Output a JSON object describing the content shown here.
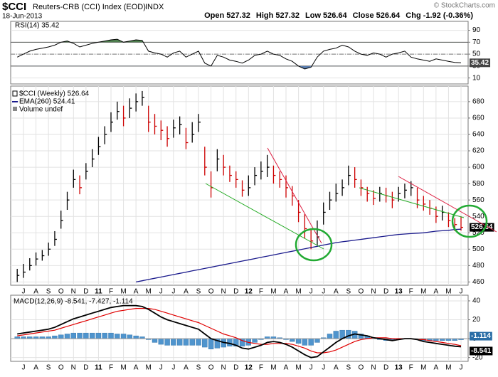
{
  "header": {
    "symbol": "$CCI",
    "name": "Reuters-CRB (CCI) Index (EOD)",
    "exchange": "INDX",
    "date": "18-Jun-2013",
    "copyright": "© StockCharts.com",
    "quote": [
      {
        "label": "Open",
        "value": "527.32"
      },
      {
        "label": "High",
        "value": "527.32"
      },
      {
        "label": "Low",
        "value": "526.64"
      },
      {
        "label": "Close",
        "value": "526.64"
      },
      {
        "label": "Chg",
        "value": "-1.92 (-0.36%)"
      }
    ]
  },
  "chart_data": [
    {
      "type": "rsi",
      "title": "RSI(14) 35.42",
      "ylim": [
        0,
        105
      ],
      "yticks": [
        10,
        30,
        50,
        70,
        90
      ],
      "shade_above": 70,
      "shade_below": 30,
      "color": "#000000",
      "shade_color": "#4f7f4f",
      "grid": true,
      "values": [
        45,
        50,
        55,
        58,
        60,
        62,
        65,
        70,
        72,
        68,
        62,
        65,
        68,
        70,
        72,
        74,
        75,
        70,
        72,
        74,
        73,
        55,
        52,
        50,
        45,
        52,
        55,
        45,
        50,
        55,
        35,
        30,
        48,
        45,
        40,
        38,
        35,
        40,
        48,
        50,
        55,
        50,
        48,
        42,
        38,
        30,
        25,
        28,
        45,
        55,
        58,
        60,
        65,
        62,
        55,
        50,
        48,
        52,
        50,
        45,
        50,
        52,
        55,
        45,
        42,
        40,
        38,
        42,
        40,
        38,
        36,
        35.42
      ]
    },
    {
      "type": "ohlc",
      "ylim": [
        456,
        699
      ],
      "yticks": [
        460,
        480,
        500,
        520,
        540,
        560,
        580,
        600,
        620,
        640,
        660,
        680
      ],
      "grid": true,
      "categories": [
        null,
        "J",
        null,
        "A",
        null,
        "S",
        null,
        "O",
        null,
        "N",
        null,
        "D",
        null,
        "11",
        null,
        "F",
        null,
        "M",
        null,
        "A",
        null,
        "M",
        null,
        "J",
        null,
        "J",
        null,
        "A",
        null,
        "S",
        null,
        "O",
        null,
        "N",
        null,
        "D",
        null,
        "12",
        null,
        "F",
        null,
        "M",
        null,
        "A",
        null,
        "M",
        null,
        "J",
        null,
        "J",
        null,
        "A",
        null,
        "S",
        null,
        "O",
        null,
        "N",
        null,
        "D",
        null,
        "13",
        null,
        "F",
        null,
        "M",
        null,
        "A",
        null,
        "M",
        null,
        "J"
      ],
      "note": "Volume undef",
      "series": [
        {
          "name": "$CCI (Weekly) 526.64",
          "up_color": "#000000",
          "down_color": "#cc0000",
          "high": [
            476,
            482,
            489,
            496,
            499,
            508,
            522,
            547,
            570,
            597,
            590,
            605,
            622,
            637,
            650,
            667,
            680,
            675,
            684,
            690,
            693,
            675,
            665,
            657,
            650,
            658,
            662,
            648,
            655,
            665,
            625,
            595,
            622,
            615,
            602,
            595,
            584,
            590,
            600,
            607,
            615,
            602,
            595,
            590,
            577,
            560,
            543,
            525,
            535,
            557,
            570,
            580,
            585,
            602,
            600,
            585,
            576,
            572,
            576,
            575,
            570,
            576,
            580,
            583,
            575,
            565,
            560,
            552,
            553,
            545,
            538,
            540
          ],
          "low": [
            460,
            465,
            474,
            480,
            486,
            492,
            504,
            525,
            548,
            575,
            567,
            585,
            600,
            615,
            628,
            643,
            658,
            650,
            660,
            668,
            675,
            643,
            640,
            633,
            625,
            636,
            640,
            622,
            630,
            643,
            590,
            563,
            595,
            590,
            582,
            575,
            564,
            565,
            578,
            585,
            588,
            580,
            575,
            563,
            553,
            533,
            513,
            500,
            505,
            530,
            548,
            558,
            565,
            578,
            575,
            565,
            558,
            554,
            558,
            557,
            550,
            558,
            562,
            565,
            550,
            547,
            542,
            532,
            535,
            527,
            522,
            522.64
          ],
          "close": [
            468,
            472,
            480,
            488,
            492,
            500,
            512,
            535,
            560,
            585,
            575,
            595,
            610,
            625,
            640,
            655,
            668,
            660,
            672,
            680,
            685,
            655,
            650,
            645,
            635,
            648,
            652,
            630,
            640,
            655,
            600,
            575,
            610,
            600,
            590,
            585,
            572,
            575,
            590,
            595,
            600,
            590,
            585,
            575,
            565,
            545,
            525,
            510,
            515,
            545,
            560,
            568,
            575,
            590,
            585,
            575,
            568,
            562,
            568,
            565,
            560,
            568,
            572,
            575,
            560,
            555,
            550,
            540,
            545,
            535,
            530,
            526.64
          ]
        },
        {
          "name": "EMA(260) 524.41",
          "color": "#1a1a8c",
          "values": [
            null,
            null,
            null,
            null,
            null,
            null,
            null,
            null,
            null,
            null,
            null,
            null,
            null,
            null,
            null,
            null,
            null,
            null,
            null,
            460,
            461.5,
            463,
            464.5,
            466,
            467.5,
            469,
            470.5,
            472,
            473.5,
            475,
            476.5,
            478,
            479.5,
            481,
            482.5,
            484,
            485.5,
            487,
            488.5,
            490,
            491.5,
            493,
            494.5,
            496,
            497.5,
            499,
            500.5,
            502,
            503.5,
            505,
            506.5,
            508,
            509,
            510,
            511,
            512,
            513,
            514,
            515,
            516,
            517,
            518,
            518.5,
            519,
            519.5,
            520,
            521,
            522,
            522.5,
            523,
            524,
            524.41
          ]
        }
      ]
    },
    {
      "type": "macd",
      "title": "MACD(12,26,9) -8.541, -7.427, -1.114",
      "ylim": [
        -24,
        46
      ],
      "yticks": [
        -20,
        0,
        20,
        40
      ],
      "grid": true,
      "categories": [
        null,
        "J",
        null,
        "A",
        null,
        "S",
        null,
        "O",
        null,
        "N",
        null,
        "D",
        null,
        "11",
        null,
        "F",
        null,
        "M",
        null,
        "A",
        null,
        "M",
        null,
        "J",
        null,
        "J",
        null,
        "A",
        null,
        "S",
        null,
        "O",
        null,
        "N",
        null,
        "D",
        null,
        "12",
        null,
        "F",
        null,
        "M",
        null,
        "A",
        null,
        "M",
        null,
        "J",
        null,
        "J",
        null,
        "A",
        null,
        "S",
        null,
        "O",
        null,
        "N",
        null,
        "D",
        null,
        "13",
        null,
        "F",
        null,
        "M",
        null,
        "A",
        null,
        "M",
        null,
        "J"
      ],
      "macd": {
        "color": "#000000",
        "values": [
          5,
          6,
          7,
          8,
          9,
          10,
          12,
          15,
          18,
          21,
          23,
          25,
          27,
          29,
          31,
          33,
          34,
          35,
          35,
          35,
          34,
          31,
          27,
          23,
          20,
          18,
          16,
          14,
          12,
          10,
          5,
          0,
          -2,
          -4,
          -5,
          -7,
          -10,
          -11,
          -9,
          -7,
          -4,
          -3,
          -4,
          -6,
          -9,
          -13,
          -17,
          -20,
          -19,
          -14,
          -9,
          -4,
          0,
          3,
          5,
          4,
          3,
          1,
          0,
          -1,
          -2,
          -1,
          0,
          0,
          -1,
          -3,
          -4,
          -5,
          -6,
          -7,
          -8,
          -8.541
        ]
      },
      "signal": {
        "color": "#e00000",
        "values": [
          3,
          4,
          5,
          6,
          7,
          8,
          9,
          11,
          13,
          15,
          17,
          19,
          21,
          23,
          25,
          27,
          29,
          30,
          31,
          32,
          32,
          32,
          31,
          29,
          27,
          25,
          23,
          21,
          19,
          17,
          14,
          11,
          8,
          5,
          3,
          1,
          -2,
          -4,
          -5,
          -6,
          -6,
          -5,
          -5,
          -5,
          -6,
          -8,
          -10,
          -13,
          -15,
          -15,
          -14,
          -12,
          -9,
          -6,
          -3,
          -1,
          0,
          1,
          1,
          1,
          0,
          0,
          0,
          0,
          -1,
          -1,
          -2,
          -3,
          -4,
          -5,
          -6,
          -7.427
        ]
      },
      "histogram": {
        "color": "#4f94cd",
        "values": [
          2,
          2,
          2,
          2,
          2,
          2,
          3,
          4,
          5,
          6,
          6,
          6,
          6,
          6,
          6,
          6,
          5,
          5,
          4,
          3,
          2,
          -1,
          -4,
          -6,
          -7,
          -7,
          -7,
          -7,
          -7,
          -7,
          -9,
          -11,
          -10,
          -9,
          -8,
          -8,
          -8,
          -7,
          -4,
          -1,
          2,
          2,
          1,
          -1,
          -3,
          -5,
          -7,
          -7,
          -4,
          1,
          5,
          8,
          9,
          9,
          8,
          5,
          3,
          0,
          -1,
          -2,
          -2,
          -1,
          0,
          0,
          0,
          -2,
          -2,
          -2,
          -2,
          -2,
          -2,
          -1.114
        ]
      }
    }
  ]
}
